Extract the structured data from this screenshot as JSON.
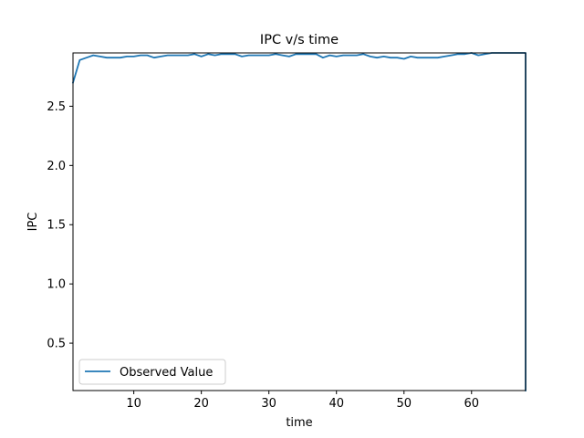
{
  "chart_data": {
    "type": "line",
    "title": "IPC v/s time",
    "xlabel": "time",
    "ylabel": "IPC",
    "xlim": [
      1,
      68
    ],
    "ylim": [
      0.1,
      2.95
    ],
    "x_ticks": [
      10,
      20,
      30,
      40,
      50,
      60
    ],
    "y_ticks": [
      0.5,
      1.0,
      1.5,
      2.0,
      2.5
    ],
    "x_tick_labels": [
      "10",
      "20",
      "30",
      "40",
      "50",
      "60"
    ],
    "y_tick_labels": [
      "0.5",
      "1.0",
      "1.5",
      "2.0",
      "2.5"
    ],
    "grid": false,
    "legend_position": "lower-left",
    "series": [
      {
        "name": "Observed Value",
        "color": "#1f77b4",
        "x": [
          1,
          2,
          3,
          4,
          5,
          6,
          7,
          8,
          9,
          10,
          11,
          12,
          13,
          14,
          15,
          16,
          17,
          18,
          19,
          20,
          21,
          22,
          23,
          24,
          25,
          26,
          27,
          28,
          29,
          30,
          31,
          32,
          33,
          34,
          35,
          36,
          37,
          38,
          39,
          40,
          41,
          42,
          43,
          44,
          45,
          46,
          47,
          48,
          49,
          50,
          51,
          52,
          53,
          54,
          55,
          56,
          57,
          58,
          59,
          60,
          61,
          62,
          63,
          64,
          65,
          66,
          67,
          68,
          68
        ],
        "values": [
          2.7,
          2.89,
          2.91,
          2.93,
          2.92,
          2.91,
          2.91,
          2.91,
          2.92,
          2.92,
          2.93,
          2.93,
          2.91,
          2.92,
          2.93,
          2.93,
          2.93,
          2.93,
          2.94,
          2.92,
          2.94,
          2.93,
          2.94,
          2.94,
          2.94,
          2.92,
          2.93,
          2.93,
          2.93,
          2.93,
          2.94,
          2.93,
          2.92,
          2.94,
          2.94,
          2.94,
          2.94,
          2.91,
          2.93,
          2.92,
          2.93,
          2.93,
          2.93,
          2.94,
          2.92,
          2.91,
          2.92,
          2.91,
          2.91,
          2.9,
          2.92,
          2.91,
          2.91,
          2.91,
          2.91,
          2.92,
          2.93,
          2.94,
          2.94,
          2.95,
          2.93,
          2.94,
          2.95,
          2.95,
          2.95,
          2.95,
          2.95,
          2.95,
          0.1
        ]
      }
    ]
  }
}
